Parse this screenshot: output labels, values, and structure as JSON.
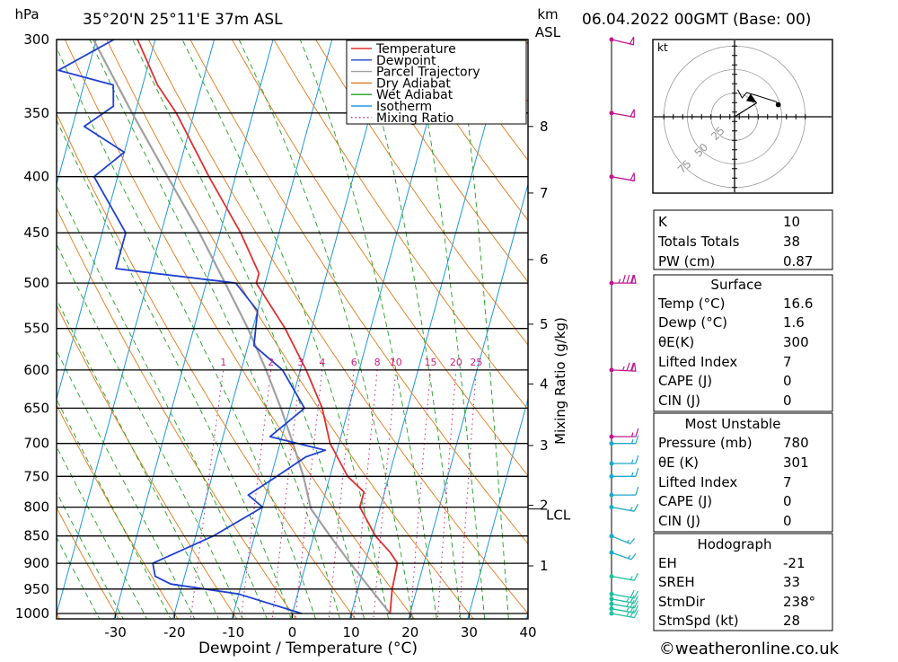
{
  "header": {
    "pressure_unit": "hPa",
    "location": "35°20'N 25°11'E 37m ASL",
    "height_unit_line1": "km",
    "height_unit_line2": "ASL",
    "datetime": "06.04.2022 00GMT (Base: 00)"
  },
  "footer": {
    "copyright": "©weatheronline.co.uk"
  },
  "chart_data": {
    "type": "skew-t",
    "xlabel": "Dewpoint / Temperature (°C)",
    "ylabel_right": "Mixing Ratio (g/kg)",
    "ylim": [
      1000,
      300
    ],
    "xlim_at_1000hPa": [
      -40,
      40
    ],
    "pressure_ticks": [
      "300",
      "350",
      "400",
      "450",
      "500",
      "550",
      "600",
      "650",
      "700",
      "750",
      "800",
      "850",
      "900",
      "950",
      "1000"
    ],
    "temperature_ticks": [
      "-30",
      "-20",
      "-10",
      "0",
      "10",
      "20",
      "30",
      "40"
    ],
    "km_ticks": [
      {
        "label": "1",
        "p": 905
      },
      {
        "label": "2",
        "p": 797
      },
      {
        "label": "3",
        "p": 703
      },
      {
        "label": "4",
        "p": 618
      },
      {
        "label": "5",
        "p": 545
      },
      {
        "label": "6",
        "p": 476
      },
      {
        "label": "7",
        "p": 414
      },
      {
        "label": "8",
        "p": 360
      }
    ],
    "lcl": {
      "label": "LCL",
      "p": 803
    },
    "mixing_ratio_labels": [
      "1",
      "2",
      "3",
      "4",
      "6",
      "8",
      "10",
      "15",
      "20",
      "25"
    ],
    "legend": {
      "placement": "top-right",
      "entries": [
        {
          "name": "Temperature",
          "color": "#e03030",
          "style": "solid"
        },
        {
          "name": "Dewpoint",
          "color": "#2040d0",
          "style": "solid"
        },
        {
          "name": "Parcel Trajectory",
          "color": "#a0a0a0",
          "style": "solid"
        },
        {
          "name": "Dry Adiabat",
          "color": "#e07818",
          "style": "solid"
        },
        {
          "name": "Wet Adiabat",
          "color": "#20a020",
          "style": "solid"
        },
        {
          "name": "Isotherm",
          "color": "#1e98e0",
          "style": "solid"
        },
        {
          "name": "Mixing Ratio",
          "color": "#d0207a",
          "style": "dotted"
        }
      ]
    },
    "temperature_profile": [
      [
        1000,
        16.6
      ],
      [
        950,
        15.8
      ],
      [
        900,
        15.5
      ],
      [
        880,
        13.8
      ],
      [
        850,
        10.5
      ],
      [
        800,
        6.5
      ],
      [
        775,
        6.5
      ],
      [
        750,
        3.0
      ],
      [
        700,
        -1.5
      ],
      [
        650,
        -4.5
      ],
      [
        600,
        -9.0
      ],
      [
        550,
        -14.5
      ],
      [
        500,
        -21.5
      ],
      [
        490,
        -21.5
      ],
      [
        450,
        -26.5
      ],
      [
        400,
        -34.5
      ],
      [
        350,
        -43.0
      ],
      [
        330,
        -47.5
      ],
      [
        300,
        -53.0
      ]
    ],
    "dewpoint_profile": [
      [
        1000,
        1.6
      ],
      [
        960,
        -10.0
      ],
      [
        940,
        -22.0
      ],
      [
        925,
        -25.0
      ],
      [
        900,
        -26.0
      ],
      [
        850,
        -17.0
      ],
      [
        800,
        -10.0
      ],
      [
        780,
        -13.0
      ],
      [
        750,
        -9.0
      ],
      [
        720,
        -5.0
      ],
      [
        710,
        -2.0
      ],
      [
        690,
        -12.0
      ],
      [
        650,
        -7.5
      ],
      [
        600,
        -13.0
      ],
      [
        570,
        -19.0
      ],
      [
        530,
        -20.0
      ],
      [
        500,
        -25.0
      ],
      [
        488,
        -42.0
      ],
      [
        485,
        -46.0
      ],
      [
        450,
        -46.0
      ],
      [
        400,
        -54.0
      ],
      [
        380,
        -50.0
      ],
      [
        360,
        -58.0
      ],
      [
        345,
        -54.0
      ],
      [
        330,
        -55.0
      ],
      [
        320,
        -65.0
      ],
      [
        300,
        -57.0
      ]
    ],
    "parcel_profile": [
      [
        1000,
        16.6
      ],
      [
        900,
        7.5
      ],
      [
        850,
        2.8
      ],
      [
        803,
        -1.7
      ],
      [
        750,
        -4.5
      ],
      [
        700,
        -7.8
      ],
      [
        650,
        -11.5
      ],
      [
        600,
        -15.8
      ],
      [
        550,
        -20.8
      ],
      [
        500,
        -26.8
      ],
      [
        450,
        -33.5
      ],
      [
        400,
        -41.5
      ],
      [
        350,
        -50.5
      ],
      [
        300,
        -60.5
      ]
    ],
    "wind_barbs": [
      {
        "p": 1000,
        "dir": 250,
        "kt": 25
      },
      {
        "p": 990,
        "dir": 250,
        "kt": 25
      },
      {
        "p": 980,
        "dir": 250,
        "kt": 25
      },
      {
        "p": 970,
        "dir": 250,
        "kt": 25
      },
      {
        "p": 960,
        "dir": 250,
        "kt": 20
      },
      {
        "p": 925,
        "dir": 250,
        "kt": 15
      },
      {
        "p": 880,
        "dir": 235,
        "kt": 15
      },
      {
        "p": 850,
        "dir": 230,
        "kt": 15
      },
      {
        "p": 800,
        "dir": 250,
        "kt": 15
      },
      {
        "p": 780,
        "dir": 270,
        "kt": 10
      },
      {
        "p": 750,
        "dir": 270,
        "kt": 15
      },
      {
        "p": 730,
        "dir": 270,
        "kt": 15
      },
      {
        "p": 700,
        "dir": 270,
        "kt": 15
      },
      {
        "p": 690,
        "dir": 270,
        "kt": 15
      },
      {
        "p": 600,
        "dir": 265,
        "kt": 75
      },
      {
        "p": 500,
        "dir": 270,
        "kt": 85
      },
      {
        "p": 400,
        "dir": 250,
        "kt": 50
      },
      {
        "p": 350,
        "dir": 250,
        "kt": 50
      },
      {
        "p": 300,
        "dir": 245,
        "kt": 50
      }
    ]
  },
  "hodograph": {
    "unit": "kt",
    "ring_labels": [
      "25",
      "50",
      "75"
    ],
    "points": [
      [
        4,
        36
      ],
      [
        10,
        25
      ],
      [
        16,
        32
      ],
      [
        30,
        28
      ],
      [
        55,
        20
      ],
      [
        58,
        16
      ]
    ],
    "storm_motion": {
      "dir": 238,
      "speed": 28
    }
  },
  "indices": {
    "k": {
      "label": "K",
      "value": "10"
    },
    "totals": {
      "label": "Totals Totals",
      "value": "38"
    },
    "pw": {
      "label": "PW (cm)",
      "value": "0.87"
    }
  },
  "surface": {
    "title": "Surface",
    "temp": {
      "label": "Temp (°C)",
      "value": "16.6"
    },
    "dewp": {
      "label": "Dewp (°C)",
      "value": "1.6"
    },
    "theta_e": {
      "label": "θE(K)",
      "value": "300"
    },
    "lifted": {
      "label": "Lifted Index",
      "value": "7"
    },
    "cape": {
      "label": "CAPE (J)",
      "value": "0"
    },
    "cin": {
      "label": "CIN (J)",
      "value": "0"
    }
  },
  "most_unstable": {
    "title": "Most Unstable",
    "pressure": {
      "label": "Pressure (mb)",
      "value": "780"
    },
    "theta_e": {
      "label": "θE (K)",
      "value": "301"
    },
    "lifted": {
      "label": "Lifted Index",
      "value": "7"
    },
    "cape": {
      "label": "CAPE (J)",
      "value": "0"
    },
    "cin": {
      "label": "CIN (J)",
      "value": "0"
    }
  },
  "hodo_table": {
    "title": "Hodograph",
    "eh": {
      "label": "EH",
      "value": "-21"
    },
    "sreh": {
      "label": "SREH",
      "value": "33"
    },
    "stmdir": {
      "label": "StmDir",
      "value": "238°"
    },
    "stmspd": {
      "label": "StmSpd (kt)",
      "value": "28"
    }
  }
}
